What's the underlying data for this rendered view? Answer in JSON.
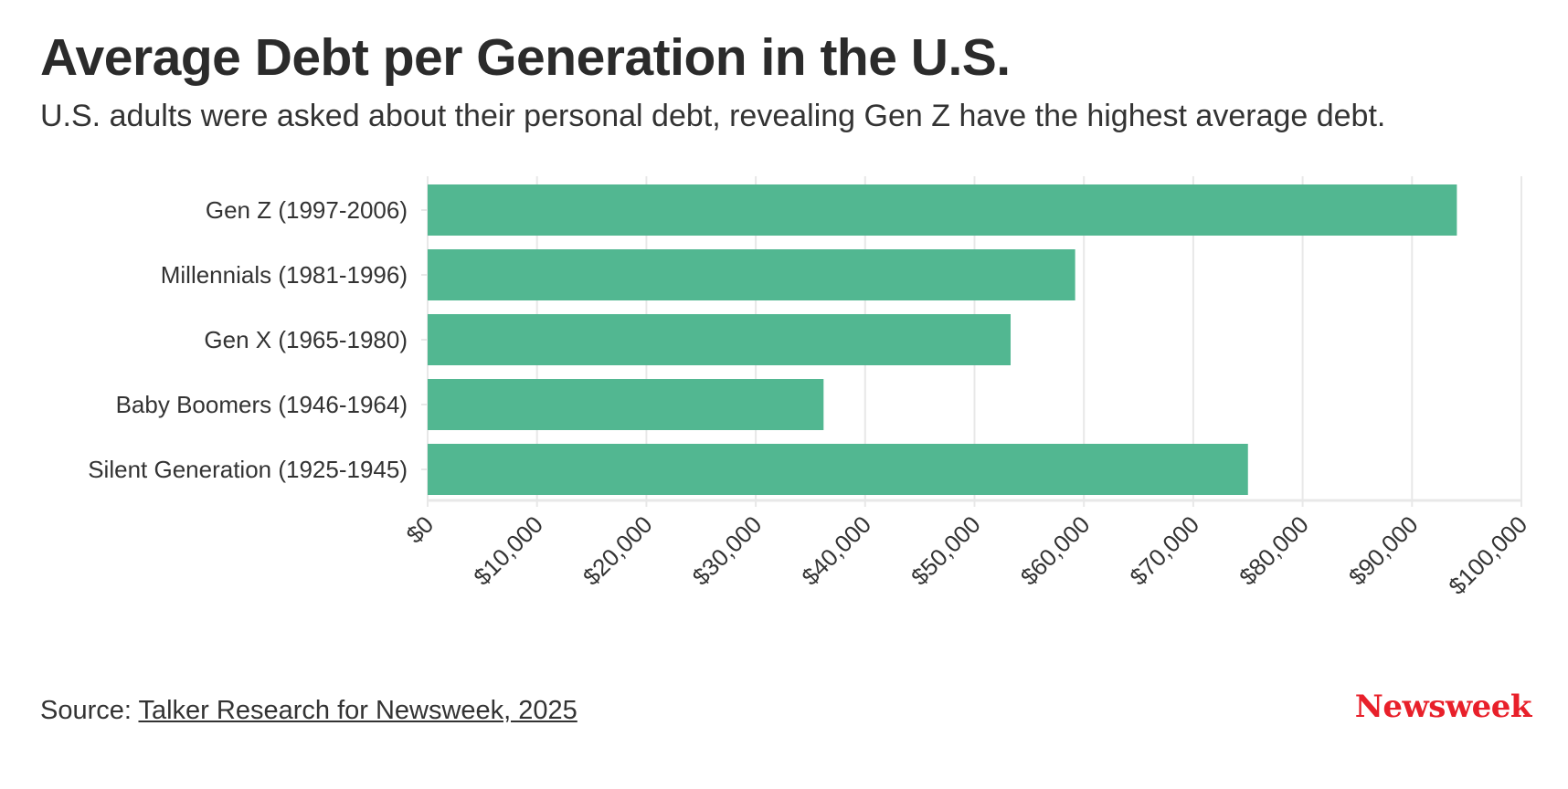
{
  "header": {
    "title": "Average Debt per Generation in the U.S.",
    "subtitle": "U.S. adults were asked about their personal debt, revealing Gen Z have the highest average debt."
  },
  "footer": {
    "source_prefix": "Source: ",
    "source_link": "Talker Research for Newsweek, 2025",
    "logo": "Newsweek"
  },
  "colors": {
    "bar": "#52b791",
    "grid": "#e8e8e8",
    "text": "#333333",
    "brand": "#e8202a"
  },
  "chart_data": {
    "type": "bar",
    "orientation": "horizontal",
    "title": "Average Debt per Generation in the U.S.",
    "xlabel": "",
    "ylabel": "",
    "categories": [
      "Gen Z (1997-2006)",
      "Millennials (1981-1996)",
      "Gen X (1965-1980)",
      "Baby Boomers (1946-1964)",
      "Silent Generation (1925-1945)"
    ],
    "values": [
      94100,
      59200,
      53300,
      36200,
      75000
    ],
    "xlim": [
      0,
      100000
    ],
    "ticks": [
      0,
      10000,
      20000,
      30000,
      40000,
      50000,
      60000,
      70000,
      80000,
      90000,
      100000
    ],
    "tick_labels": [
      "$0",
      "$10,000",
      "$20,000",
      "$30,000",
      "$40,000",
      "$50,000",
      "$60,000",
      "$70,000",
      "$80,000",
      "$90,000",
      "$100,000"
    ],
    "grid": true
  }
}
